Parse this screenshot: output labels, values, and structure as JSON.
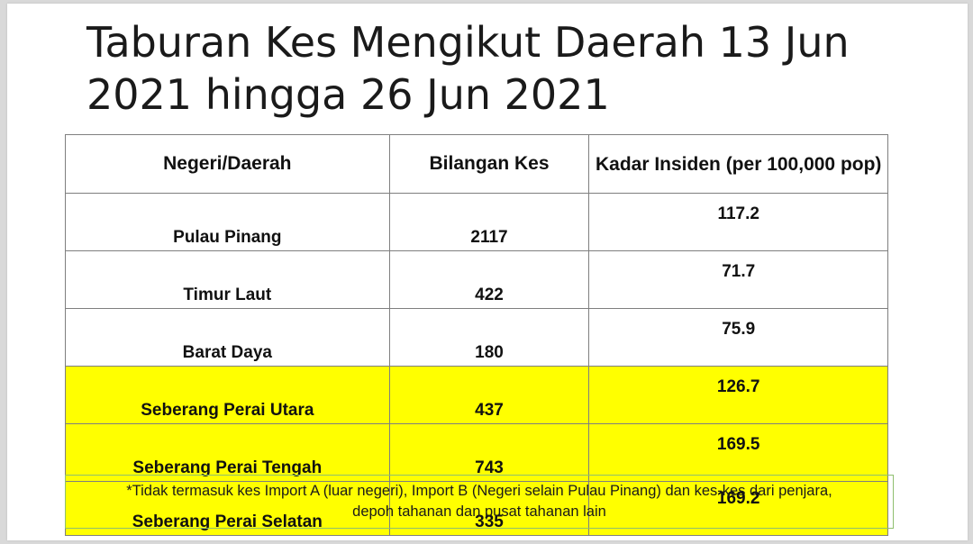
{
  "slide": {
    "title": "Taburan Kes Mengikut Daerah 13 Jun 2021 hingga 26 Jun 2021"
  },
  "table": {
    "headers": {
      "region": "Negeri/Daerah",
      "cases": "Bilangan Kes",
      "rate": "Kadar Insiden (per 100,000 pop)"
    },
    "rows": [
      {
        "name": "Pulau Pinang",
        "cases": "2117",
        "rate": "117.2"
      },
      {
        "name": "Timur Laut",
        "cases": "422",
        "rate": "71.7"
      },
      {
        "name": "Barat Daya",
        "cases": "180",
        "rate": "75.9"
      },
      {
        "name": "Seberang Perai Utara",
        "cases": "437",
        "rate": "126.7"
      },
      {
        "name": "Seberang Perai Tengah",
        "cases": "743",
        "rate": "169.5"
      },
      {
        "name": "Seberang Perai Selatan",
        "cases": "335",
        "rate": "169.2"
      }
    ],
    "highlight_color": "#ffff00"
  },
  "footnote": {
    "line1": "*Tidak termasuk kes Import A (luar negeri), Import B (Negeri selain Pulau Pinang) dan kes-kes dari penjara,",
    "line2": "depoh tahanan dan pusat tahanan lain"
  }
}
